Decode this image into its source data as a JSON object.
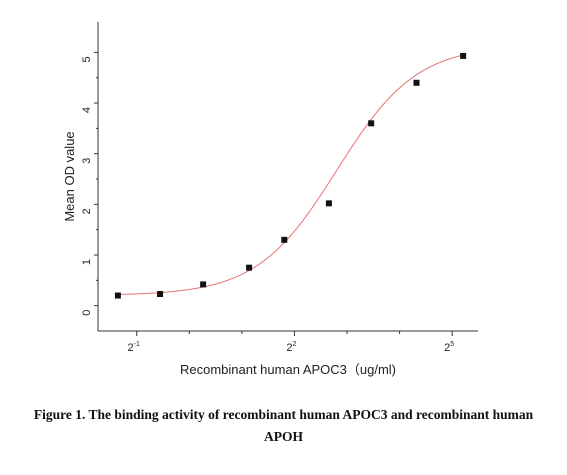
{
  "chart_data": {
    "type": "scatter",
    "title": "",
    "xlabel": "Recombinant human  APOC3（ug/ml)",
    "ylabel": "Mean OD value",
    "x_scale": "log2",
    "xlim": [
      0.3,
      45
    ],
    "ylim": [
      -0.5,
      5.6
    ],
    "x_ticks": [
      {
        "value": 0.5,
        "base": "2",
        "exp": "-1"
      },
      {
        "value": 4,
        "base": "2",
        "exp": "2"
      },
      {
        "value": 32,
        "base": "2",
        "exp": "5"
      }
    ],
    "y_ticks": [
      0,
      1,
      2,
      3,
      4,
      5
    ],
    "grid": false,
    "legend": "none",
    "marker_color": "#111111",
    "fit_color": "#e57373",
    "series": [
      {
        "values": [
          {
            "x": 0.39,
            "y": 0.2
          },
          {
            "x": 0.68,
            "y": 0.23
          },
          {
            "x": 1.2,
            "y": 0.42
          },
          {
            "x": 2.2,
            "y": 0.75
          },
          {
            "x": 3.5,
            "y": 1.3
          },
          {
            "x": 6.3,
            "y": 2.02
          },
          {
            "x": 11,
            "y": 3.6
          },
          {
            "x": 20,
            "y": 4.4
          },
          {
            "x": 37,
            "y": 4.93
          }
        ]
      }
    ],
    "fit": {
      "model": "four-parameter logistic",
      "bottom": 0.2,
      "top": 5.15,
      "ec50": 7.0,
      "hill": 1.9
    }
  },
  "caption": {
    "line1": "Figure 1. The binding activity of recombinant human APOC3 and recombinant human",
    "line2": "APOH"
  }
}
